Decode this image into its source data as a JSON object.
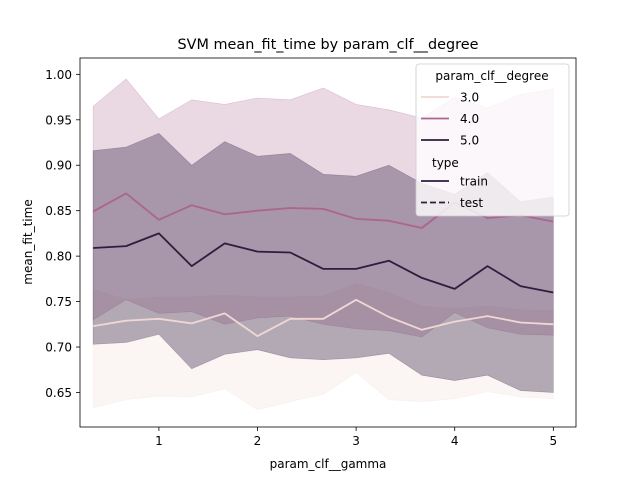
{
  "chart_data": {
    "type": "line",
    "title": "SVM mean_fit_time by param_clf__degree",
    "xlabel": "param_clf__gamma",
    "ylabel": "mean_fit_time",
    "xlim": [
      0.2,
      5.23
    ],
    "ylim": [
      0.612,
      1.018
    ],
    "xticks": [
      1,
      2,
      3,
      4,
      5
    ],
    "xtick_labels": [
      "1",
      "2",
      "3",
      "4",
      "5"
    ],
    "yticks": [
      0.65,
      0.7,
      0.75,
      0.8,
      0.85,
      0.9,
      0.95,
      1.0
    ],
    "ytick_labels": [
      "0.65",
      "0.70",
      "0.75",
      "0.80",
      "0.85",
      "0.90",
      "0.95",
      "1.00"
    ],
    "x": [
      0.333,
      0.667,
      1.0,
      1.333,
      1.667,
      2.0,
      2.333,
      2.667,
      3.0,
      3.333,
      3.667,
      4.0,
      4.333,
      4.667,
      5.0
    ],
    "series": [
      {
        "name": "3.0",
        "color": "#f1d7d3",
        "band_opacity": 0.25,
        "values": [
          0.723,
          0.729,
          0.731,
          0.726,
          0.737,
          0.712,
          0.731,
          0.731,
          0.752,
          0.733,
          0.719,
          0.728,
          0.734,
          0.727,
          0.725
        ],
        "upper": [
          0.764,
          0.752,
          0.755,
          0.755,
          0.757,
          0.755,
          0.755,
          0.756,
          0.77,
          0.76,
          0.745,
          0.742,
          0.745,
          0.741,
          0.74
        ],
        "lower": [
          0.633,
          0.642,
          0.646,
          0.645,
          0.654,
          0.631,
          0.64,
          0.648,
          0.672,
          0.642,
          0.64,
          0.643,
          0.651,
          0.645,
          0.643
        ]
      },
      {
        "name": "4.0",
        "color": "#ab6590",
        "band_opacity": 0.25,
        "values": [
          0.849,
          0.869,
          0.84,
          0.856,
          0.846,
          0.85,
          0.853,
          0.852,
          0.841,
          0.839,
          0.831,
          0.859,
          0.842,
          0.845,
          0.838
        ],
        "upper": [
          0.965,
          0.995,
          0.951,
          0.972,
          0.967,
          0.974,
          0.972,
          0.985,
          0.967,
          0.961,
          0.952,
          0.975,
          0.963,
          0.978,
          0.984
        ],
        "lower": [
          0.73,
          0.752,
          0.737,
          0.739,
          0.725,
          0.732,
          0.734,
          0.725,
          0.72,
          0.718,
          0.711,
          0.738,
          0.721,
          0.714,
          0.713
        ]
      },
      {
        "name": "5.0",
        "color": "#2d1e3e",
        "band_opacity": 0.35,
        "values": [
          0.809,
          0.811,
          0.825,
          0.789,
          0.814,
          0.805,
          0.804,
          0.786,
          0.786,
          0.795,
          0.776,
          0.764,
          0.789,
          0.767,
          0.76
        ],
        "upper": [
          0.916,
          0.92,
          0.935,
          0.9,
          0.926,
          0.91,
          0.913,
          0.89,
          0.888,
          0.9,
          0.88,
          0.868,
          0.892,
          0.86,
          0.865
        ],
        "lower": [
          0.703,
          0.705,
          0.714,
          0.676,
          0.692,
          0.697,
          0.688,
          0.686,
          0.688,
          0.693,
          0.669,
          0.663,
          0.669,
          0.652,
          0.65
        ]
      }
    ],
    "legend": {
      "placement": "top-right",
      "hue_title": "param_clf__degree",
      "hue_entries": [
        "3.0",
        "4.0",
        "5.0"
      ],
      "style_title": "type",
      "style_entries": [
        {
          "label": "train",
          "dash": "solid"
        },
        {
          "label": "test",
          "dash": "dashed"
        }
      ]
    },
    "grid": false
  }
}
